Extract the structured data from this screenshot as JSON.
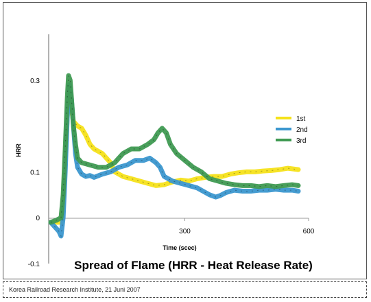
{
  "chart_data": {
    "type": "line",
    "title": "Spread of Flame (HRR - Heat Release Rate)",
    "xlabel": "Time (scec)",
    "ylabel": "HRR",
    "xlim": [
      -30,
      600
    ],
    "ylim": [
      -0.1,
      0.4
    ],
    "x_ticks": [
      {
        "value": 300,
        "label": "300"
      },
      {
        "value": 600,
        "label": "600"
      }
    ],
    "y_ticks": [
      {
        "value": -0.1,
        "label": "-0.1"
      },
      {
        "value": 0,
        "label": "0"
      },
      {
        "value": 0.1,
        "label": "0.1"
      },
      {
        "value": 0.3,
        "label": "0.3"
      }
    ],
    "legend_position": "right",
    "series": [
      {
        "name": "1st",
        "color": "#f5e21a",
        "points": [
          [
            -25,
            -0.01
          ],
          [
            -10,
            -0.01
          ],
          [
            0,
            -0.01
          ],
          [
            5,
            0.02
          ],
          [
            10,
            0.12
          ],
          [
            15,
            0.22
          ],
          [
            20,
            0.27
          ],
          [
            25,
            0.24
          ],
          [
            30,
            0.21
          ],
          [
            40,
            0.2
          ],
          [
            50,
            0.195
          ],
          [
            60,
            0.18
          ],
          [
            70,
            0.16
          ],
          [
            80,
            0.15
          ],
          [
            90,
            0.145
          ],
          [
            100,
            0.14
          ],
          [
            110,
            0.13
          ],
          [
            120,
            0.12
          ],
          [
            130,
            0.1
          ],
          [
            140,
            0.095
          ],
          [
            150,
            0.09
          ],
          [
            170,
            0.085
          ],
          [
            190,
            0.08
          ],
          [
            210,
            0.075
          ],
          [
            230,
            0.07
          ],
          [
            250,
            0.072
          ],
          [
            270,
            0.078
          ],
          [
            290,
            0.082
          ],
          [
            310,
            0.08
          ],
          [
            330,
            0.085
          ],
          [
            350,
            0.088
          ],
          [
            370,
            0.09
          ],
          [
            390,
            0.09
          ],
          [
            410,
            0.095
          ],
          [
            430,
            0.098
          ],
          [
            450,
            0.1
          ],
          [
            470,
            0.1
          ],
          [
            490,
            0.102
          ],
          [
            510,
            0.103
          ],
          [
            530,
            0.105
          ],
          [
            550,
            0.108
          ],
          [
            575,
            0.105
          ]
        ]
      },
      {
        "name": "2nd",
        "color": "#3b97cf",
        "points": [
          [
            -25,
            -0.01
          ],
          [
            -15,
            -0.02
          ],
          [
            -5,
            -0.03
          ],
          [
            0,
            -0.04
          ],
          [
            5,
            0.0
          ],
          [
            10,
            0.1
          ],
          [
            15,
            0.22
          ],
          [
            20,
            0.29
          ],
          [
            25,
            0.26
          ],
          [
            30,
            0.2
          ],
          [
            35,
            0.14
          ],
          [
            40,
            0.11
          ],
          [
            50,
            0.095
          ],
          [
            60,
            0.09
          ],
          [
            70,
            0.092
          ],
          [
            80,
            0.088
          ],
          [
            100,
            0.095
          ],
          [
            120,
            0.1
          ],
          [
            140,
            0.11
          ],
          [
            160,
            0.115
          ],
          [
            180,
            0.125
          ],
          [
            200,
            0.125
          ],
          [
            215,
            0.13
          ],
          [
            230,
            0.12
          ],
          [
            240,
            0.11
          ],
          [
            250,
            0.09
          ],
          [
            270,
            0.08
          ],
          [
            290,
            0.075
          ],
          [
            310,
            0.07
          ],
          [
            330,
            0.065
          ],
          [
            350,
            0.055
          ],
          [
            360,
            0.05
          ],
          [
            375,
            0.045
          ],
          [
            385,
            0.048
          ],
          [
            400,
            0.055
          ],
          [
            420,
            0.06
          ],
          [
            440,
            0.058
          ],
          [
            460,
            0.058
          ],
          [
            480,
            0.06
          ],
          [
            500,
            0.06
          ],
          [
            520,
            0.062
          ],
          [
            540,
            0.06
          ],
          [
            560,
            0.06
          ],
          [
            575,
            0.058
          ]
        ]
      },
      {
        "name": "3rd",
        "color": "#3f9a52",
        "points": [
          [
            -25,
            -0.01
          ],
          [
            -10,
            -0.005
          ],
          [
            0,
            0.0
          ],
          [
            5,
            0.05
          ],
          [
            10,
            0.15
          ],
          [
            15,
            0.26
          ],
          [
            18,
            0.31
          ],
          [
            22,
            0.3
          ],
          [
            26,
            0.25
          ],
          [
            30,
            0.2
          ],
          [
            35,
            0.16
          ],
          [
            40,
            0.13
          ],
          [
            50,
            0.12
          ],
          [
            70,
            0.115
          ],
          [
            90,
            0.11
          ],
          [
            110,
            0.11
          ],
          [
            130,
            0.12
          ],
          [
            150,
            0.14
          ],
          [
            170,
            0.15
          ],
          [
            190,
            0.15
          ],
          [
            210,
            0.16
          ],
          [
            225,
            0.17
          ],
          [
            235,
            0.185
          ],
          [
            245,
            0.195
          ],
          [
            255,
            0.185
          ],
          [
            265,
            0.16
          ],
          [
            280,
            0.14
          ],
          [
            300,
            0.125
          ],
          [
            320,
            0.11
          ],
          [
            340,
            0.1
          ],
          [
            360,
            0.085
          ],
          [
            380,
            0.08
          ],
          [
            400,
            0.075
          ],
          [
            420,
            0.072
          ],
          [
            440,
            0.07
          ],
          [
            460,
            0.07
          ],
          [
            480,
            0.068
          ],
          [
            500,
            0.07
          ],
          [
            520,
            0.068
          ],
          [
            540,
            0.07
          ],
          [
            560,
            0.072
          ],
          [
            575,
            0.07
          ]
        ]
      }
    ]
  },
  "footer": {
    "caption": "Korea Railroad Research Institute, 21 Juni 2007"
  }
}
